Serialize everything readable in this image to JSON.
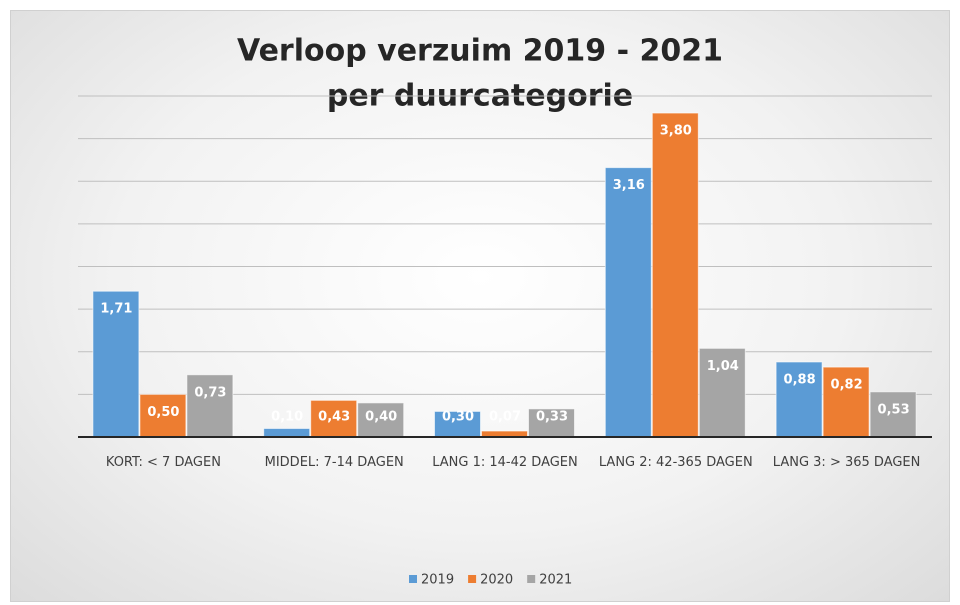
{
  "chart_data": {
    "type": "bar",
    "title": "Verloop verzuim 2019 - 2021",
    "subtitle": "per duurcategorie",
    "categories": [
      "KORT: < 7 DAGEN",
      "MIDDEL: 7-14 DAGEN",
      "LANG 1: 14-42 DAGEN",
      "LANG 2: 42-365 DAGEN",
      "LANG 3: > 365 DAGEN"
    ],
    "series": [
      {
        "name": "2019",
        "color": "#5b9bd5",
        "values": [
          1.71,
          0.1,
          0.3,
          3.16,
          0.88
        ],
        "value_labels": [
          "1,71",
          "0,10",
          "0,30",
          "3,16",
          "0,88"
        ]
      },
      {
        "name": "2020",
        "color": "#ed7d31",
        "values": [
          0.5,
          0.43,
          0.07,
          3.8,
          0.82
        ],
        "value_labels": [
          "0,50",
          "0,43",
          "0,07",
          "3,80",
          "0,82"
        ]
      },
      {
        "name": "2021",
        "color": "#a5a5a5",
        "values": [
          0.73,
          0.4,
          0.33,
          1.04,
          0.53
        ],
        "value_labels": [
          "0,73",
          "0,40",
          "0,33",
          "1,04",
          "0,53"
        ]
      }
    ],
    "ylim": [
      0,
      4
    ],
    "yticks": [
      0,
      0.5,
      1,
      1.5,
      2,
      2.5,
      3,
      3.5,
      4
    ],
    "grid": true,
    "legend": "bottom"
  }
}
